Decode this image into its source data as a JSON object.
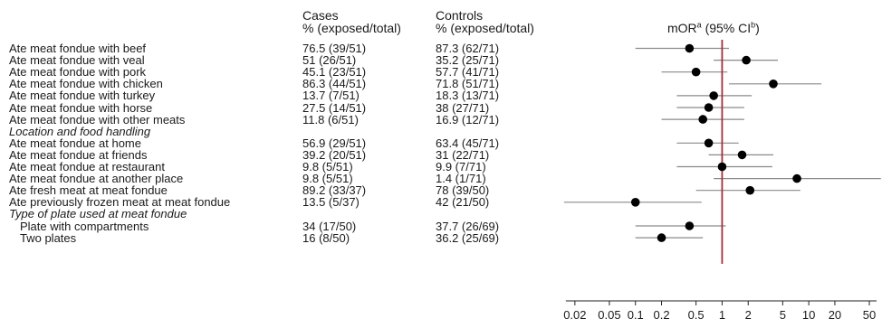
{
  "headers": {
    "cases_line1": "Cases",
    "cases_line2": "% (exposed/total)",
    "controls_line1": "Controls",
    "controls_line2": "% (exposed/total)",
    "or_main": "mOR",
    "or_sup_a": "a",
    "or_mid": " (95% CI",
    "or_sup_b": "b",
    "or_end": ")"
  },
  "rows": [
    {
      "label": "Ate meat fondue with beef",
      "cases": "76.5 (39/51)",
      "controls": "87.3 (62/71)"
    },
    {
      "label": "Ate meat fondue with veal",
      "cases": "51 (26/51)",
      "controls": "35.2 (25/71)"
    },
    {
      "label": "Ate meat fondue with pork",
      "cases": "45.1 (23/51)",
      "controls": "57.7 (41/71)"
    },
    {
      "label": "Ate meat fondue with chicken",
      "cases": "86.3 (44/51)",
      "controls": "71.8 (51/71)"
    },
    {
      "label": "Ate meat fondue with turkey",
      "cases": "13.7 (7/51)",
      "controls": "18.3 (13/71)"
    },
    {
      "label": "Ate meat fondue with horse",
      "cases": "27.5 (14/51)",
      "controls": "38 (27/71)"
    },
    {
      "label": "Ate meat fondue with other meats",
      "cases": "11.8 (6/51)",
      "controls": "16.9 (12/71)"
    },
    {
      "label": "Location and food handling",
      "section": true
    },
    {
      "label": "Ate meat fondue at home",
      "cases": "56.9 (29/51)",
      "controls": "63.4 (45/71)"
    },
    {
      "label": "Ate meat fondue at friends",
      "cases": "39.2 (20/51)",
      "controls": "31 (22/71)"
    },
    {
      "label": "Ate meat fondue at restaurant",
      "cases": "9.8 (5/51)",
      "controls": "9.9 (7/71)"
    },
    {
      "label": "Ate meat fondue at another place",
      "cases": "9.8 (5/51)",
      "controls": "1.4 (1/71)"
    },
    {
      "label": "Ate fresh meat at meat fondue",
      "cases": "89.2 (33/37)",
      "controls": "78 (39/50)"
    },
    {
      "label": "Ate previously frozen meat at meat fondue",
      "cases": "13.5 (5/37)",
      "controls": "42 (21/50)"
    },
    {
      "label": "Type of plate used at meat fondue",
      "section": true
    },
    {
      "label": "Plate with compartments",
      "cases": "34 (17/50)",
      "controls": "37.7 (26/69)",
      "indent": true
    },
    {
      "label": "Two plates",
      "cases": "16 (8/50)",
      "controls": "36.2 (25/69)",
      "indent": true
    }
  ],
  "chart_data": {
    "type": "scatter",
    "x_scale": "log",
    "xlim": [
      0.011,
      70
    ],
    "reference_line": 1,
    "reference_color": "#a0303a",
    "x_ticks": [
      0.02,
      0.05,
      0.1,
      0.2,
      0.5,
      1,
      2,
      5,
      10,
      20,
      50
    ],
    "x_tick_labels": [
      "0.02",
      "0.05",
      "0.1",
      "0.2",
      "0.5",
      "1",
      "2",
      "5",
      "10",
      "20",
      "50"
    ],
    "estimates": [
      {
        "row": 0,
        "or": 0.42,
        "lo": 0.1,
        "hi": 1.2
      },
      {
        "row": 1,
        "or": 1.9,
        "lo": 0.8,
        "hi": 4.4
      },
      {
        "row": 2,
        "or": 0.5,
        "lo": 0.2,
        "hi": 1.15
      },
      {
        "row": 3,
        "or": 3.9,
        "lo": 1.2,
        "hi": 14
      },
      {
        "row": 4,
        "or": 0.8,
        "lo": 0.3,
        "hi": 2.2
      },
      {
        "row": 5,
        "or": 0.7,
        "lo": 0.3,
        "hi": 1.8
      },
      {
        "row": 6,
        "or": 0.6,
        "lo": 0.2,
        "hi": 1.8
      },
      {
        "row": 8,
        "or": 0.7,
        "lo": 0.3,
        "hi": 1.55
      },
      {
        "row": 9,
        "or": 1.7,
        "lo": 0.7,
        "hi": 3.9
      },
      {
        "row": 10,
        "or": 1.0,
        "lo": 0.3,
        "hi": 3.8
      },
      {
        "row": 11,
        "or": 7.3,
        "lo": 0.8,
        "hi": 68
      },
      {
        "row": 12,
        "or": 2.1,
        "lo": 0.5,
        "hi": 8.0
      },
      {
        "row": 13,
        "or": 0.1,
        "lo": 0.015,
        "hi": 0.58
      },
      {
        "row": 15,
        "or": 0.42,
        "lo": 0.1,
        "hi": 1.1
      },
      {
        "row": 16,
        "or": 0.2,
        "lo": 0.1,
        "hi": 0.6
      }
    ]
  }
}
